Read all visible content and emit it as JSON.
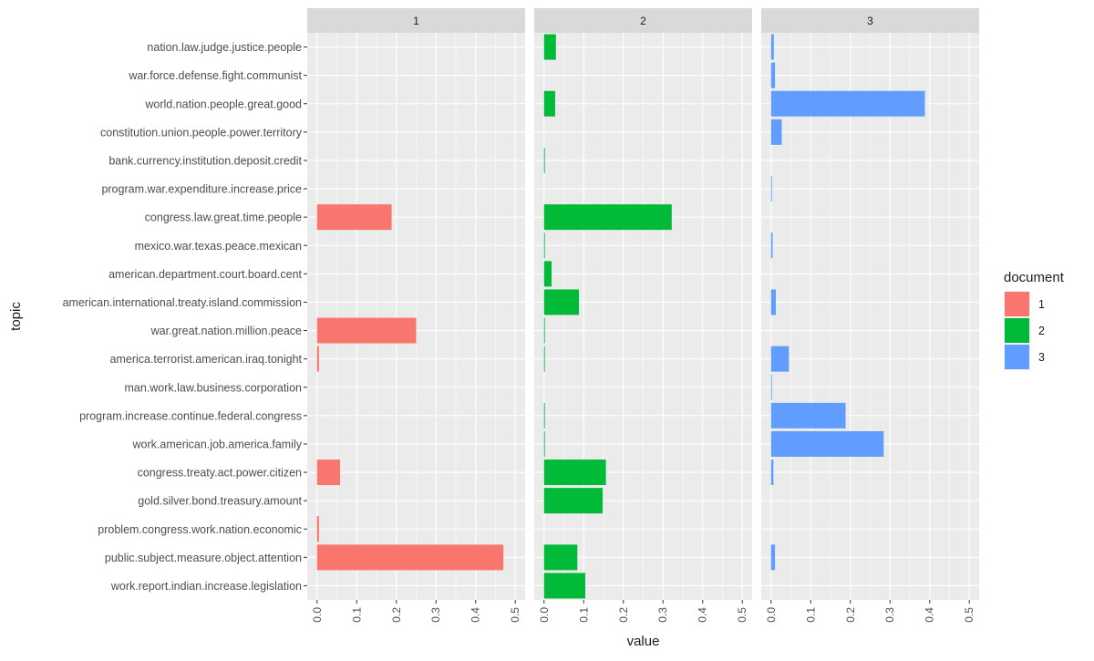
{
  "chart_data": {
    "type": "bar",
    "orientation": "horizontal",
    "facets": [
      "1",
      "2",
      "3"
    ],
    "xlabel": "value",
    "ylabel": "topic",
    "xlim": [
      0,
      0.5
    ],
    "xticks": [
      0.0,
      0.1,
      0.2,
      0.3,
      0.4,
      0.5
    ],
    "xtick_labels": [
      "0.0",
      "0.1",
      "0.2",
      "0.3",
      "0.4",
      "0.5"
    ],
    "grid": true,
    "legend": {
      "title": "document",
      "position": "right",
      "entries": [
        {
          "label": "1",
          "color": "#F8766D"
        },
        {
          "label": "2",
          "color": "#00BA38"
        },
        {
          "label": "3",
          "color": "#619CFF"
        }
      ]
    },
    "categories": [
      "nation.law.judge.justice.people",
      "war.force.defense.fight.communist",
      "world.nation.people.great.good",
      "constitution.union.people.power.territory",
      "bank.currency.institution.deposit.credit",
      "program.war.expenditure.increase.price",
      "congress.law.great.time.people",
      "mexico.war.texas.peace.mexican",
      "american.department.court.board.cent",
      "american.international.treaty.island.commission",
      "war.great.nation.million.peace",
      "america.terrorist.american.iraq.tonight",
      "man.work.law.business.corporation",
      "program.increase.continue.federal.congress",
      "work.american.job.america.family",
      "congress.treaty.act.power.citizen",
      "gold.silver.bond.treasury.amount",
      "problem.congress.work.nation.economic",
      "public.subject.measure.object.attention",
      "work.report.indian.increase.legislation"
    ],
    "series": [
      {
        "name": "1",
        "color": "#F8766D",
        "values": [
          0,
          0,
          0,
          0,
          0,
          0,
          0.188,
          0,
          0,
          0,
          0.25,
          0.005,
          0,
          0,
          0,
          0.058,
          0,
          0.005,
          0.47,
          0
        ]
      },
      {
        "name": "2",
        "color": "#00BA38",
        "values": [
          0.03,
          0,
          0.028,
          0,
          0.002,
          0,
          0.322,
          0.002,
          0.019,
          0.088,
          0.002,
          0.002,
          0,
          0.002,
          0.002,
          0.156,
          0.148,
          0,
          0.084,
          0.104
        ]
      },
      {
        "name": "3",
        "color": "#619CFF",
        "values": [
          0.007,
          0.01,
          0.388,
          0.027,
          0,
          0.002,
          0,
          0.004,
          0,
          0.012,
          0,
          0.045,
          0.002,
          0.188,
          0.284,
          0.006,
          0,
          0,
          0.01,
          0
        ]
      }
    ]
  }
}
